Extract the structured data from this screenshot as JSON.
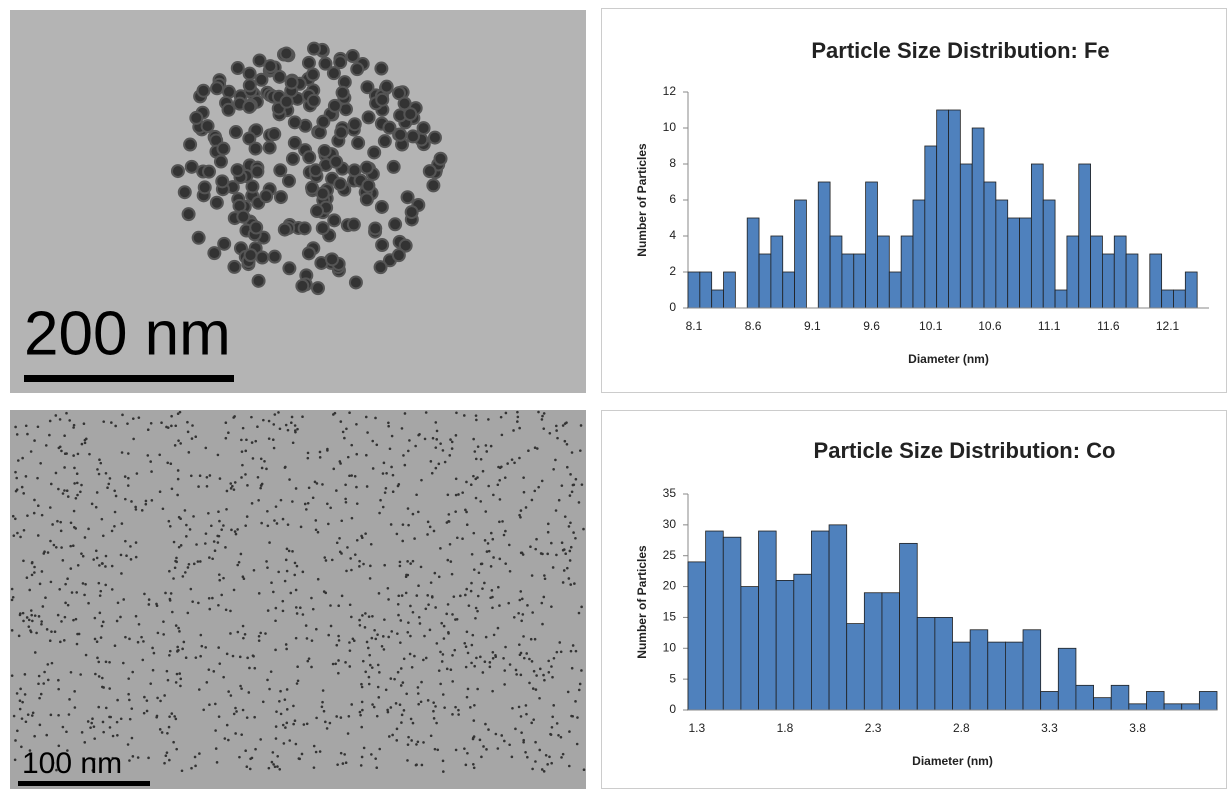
{
  "figure": {
    "micrographs": [
      {
        "scale_label": "200 nm"
      },
      {
        "scale_label": "100 nm"
      }
    ]
  },
  "chart_data": [
    {
      "type": "bar",
      "title": "Particle Size Distribution: Fe",
      "x_label": "Diameter (nm)",
      "y_label": "Number of Particles",
      "categories": [
        "8.1",
        null,
        null,
        null,
        null,
        "8.6",
        null,
        null,
        null,
        null,
        "9.1",
        null,
        null,
        null,
        null,
        "9.6",
        null,
        null,
        null,
        null,
        "10.1",
        null,
        null,
        null,
        null,
        "10.6",
        null,
        null,
        null,
        null,
        "11.1",
        null,
        null,
        null,
        null,
        "11.6",
        null,
        null,
        null,
        null,
        "12.1",
        null,
        null,
        null
      ],
      "values": [
        2,
        2,
        1,
        2,
        0,
        5,
        3,
        4,
        2,
        6,
        0,
        7,
        4,
        3,
        3,
        7,
        4,
        2,
        4,
        6,
        9,
        11,
        11,
        8,
        10,
        7,
        6,
        5,
        5,
        8,
        6,
        1,
        4,
        8,
        4,
        3,
        4,
        3,
        0,
        3,
        1,
        1,
        2,
        0
      ],
      "color": "#4f81bd",
      "ylim": [
        0,
        12
      ],
      "yticks": [
        0,
        2,
        4,
        6,
        8,
        10,
        12
      ]
    },
    {
      "type": "bar",
      "title": "Particle Size Distribution: Co",
      "x_label": "Diameter (nm)",
      "y_label": "Number of Particles",
      "categories": [
        "1.3",
        null,
        null,
        null,
        null,
        "1.8",
        null,
        null,
        null,
        null,
        "2.3",
        null,
        null,
        null,
        null,
        "2.8",
        null,
        null,
        null,
        null,
        "3.3",
        null,
        null,
        null,
        null,
        "3.8",
        null,
        null,
        null,
        null
      ],
      "values": [
        24,
        29,
        28,
        20,
        29,
        21,
        22,
        29,
        30,
        14,
        19,
        19,
        27,
        15,
        15,
        11,
        13,
        11,
        11,
        13,
        3,
        10,
        4,
        2,
        4,
        1,
        3,
        1,
        1,
        3
      ],
      "color": "#4f81bd",
      "ylim": [
        0,
        35
      ],
      "yticks": [
        0,
        5,
        10,
        15,
        20,
        25,
        30,
        35
      ]
    }
  ]
}
